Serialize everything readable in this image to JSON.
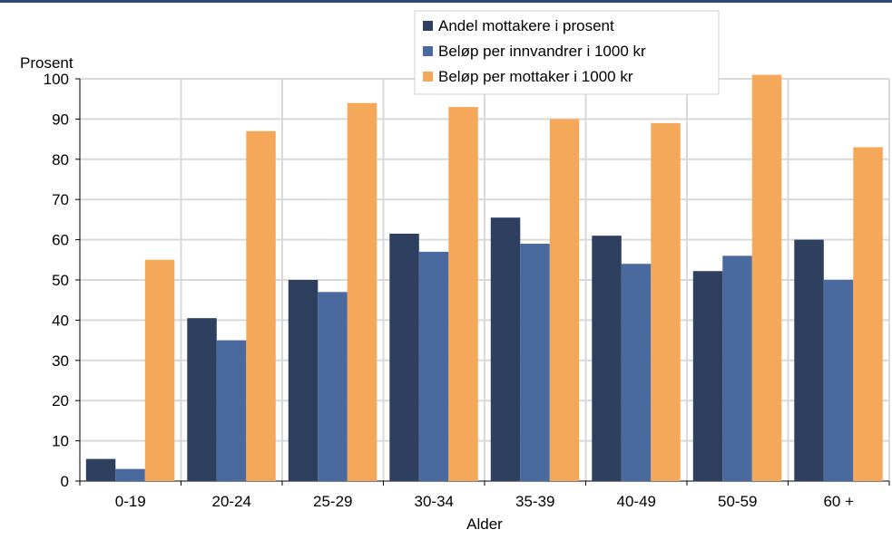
{
  "chart_data": {
    "type": "bar",
    "title": "",
    "xlabel": "Alder",
    "ylabel": "Prosent",
    "ylim": [
      0,
      100
    ],
    "yticks": [
      0,
      10,
      20,
      30,
      40,
      50,
      60,
      70,
      80,
      90,
      100
    ],
    "grid": true,
    "legend_position": "top-right",
    "categories": [
      "0-19",
      "20-24",
      "25-29",
      "30-34",
      "35-39",
      "40-49",
      "50-59",
      "60 +"
    ],
    "series": [
      {
        "name": "Andel mottakere i prosent",
        "color": "#2f3f5f",
        "values": [
          5.5,
          40.5,
          50,
          61.5,
          65.5,
          61,
          52.2,
          60
        ]
      },
      {
        "name": "Beløp per innvandrer i 1000 kr",
        "color": "#4a699e",
        "values": [
          3,
          35,
          47,
          57,
          59,
          54,
          56,
          50
        ]
      },
      {
        "name": "Beløp per mottaker i 1000 kr",
        "color": "#f6a85a",
        "values": [
          55,
          87,
          94,
          93,
          90,
          89,
          101,
          83
        ]
      }
    ]
  }
}
